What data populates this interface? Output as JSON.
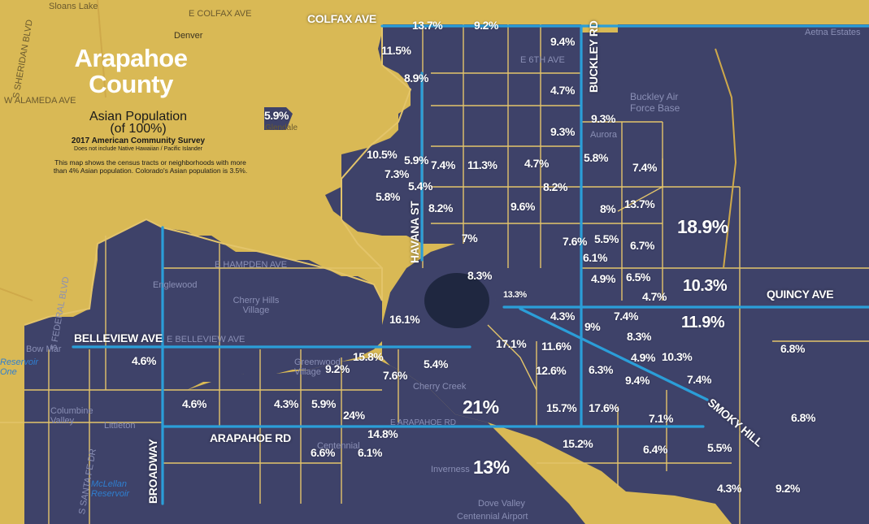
{
  "title_line1": "Arapahoe",
  "title_line2": "County",
  "subtitle_line1": "Asian Population",
  "subtitle_line2": "(of 100%)",
  "survey": "2017 American Community Survey",
  "exclusion_note": "Does not include Native Hawaiian / Pacific Islander",
  "description_line1": "This map shows the census tracts or neighborhoods with more",
  "description_line2": "than 4% Asian population. Colorado's Asian population is 3.5%.",
  "colors": {
    "background": "#d9b955",
    "tract_fill": "#3e4269",
    "boundary": "#e3c46a",
    "road": "#2b9ed8",
    "label": "#ffffff"
  },
  "roads": {
    "colfax": "COLFAX AVE",
    "buckley": "BUCKLEY RD",
    "havana": "HAVANA ST",
    "quincy": "QUINCY AVE",
    "belleview": "BELLEVIEW AVE",
    "arapahoe": "ARAPAHOE RD",
    "broadway": "BROADWAY",
    "smoky_hill": "SMOKY HILL"
  },
  "places": {
    "sloans_lake": "Sloans Lake",
    "denver": "Denver",
    "colfax_ave_map": "E COLFAX AVE",
    "e_6th_ave": "E 6TH AVE",
    "w_alameda": "W ALAMEDA AVE",
    "glendale": "Glendale",
    "englewood": "Englewood",
    "e_hampden": "E HAMPDEN AVE",
    "cherry_hills": "Cherry Hills Village",
    "e_belleview": "E BELLEVIEW AVE",
    "bow_mar": "Bow Mar",
    "reservoir": "Reservoir One",
    "greenwood": "Greenwood Village",
    "cherry_creek": "Cherry Creek",
    "columbine": "Columbine Valley",
    "littleton": "Littleton",
    "mcclellan": "McLellan Reservoir",
    "centennial": "Centennial",
    "inverness": "Inverness",
    "dove_valley": "Dove Valley",
    "aurora": "Aurora",
    "buckley_afb": "Buckley Air Force Base",
    "aetna": "Aetna Estates",
    "e_arapahoe": "E ARAPAHOE RD",
    "s_federal": "S FEDERAL BLVD",
    "s_sheridan": "S SHERIDAN BLVD",
    "s_santa_fe": "S SANTA FE DR",
    "airport": "Centennial Airport"
  },
  "tracts": [
    {
      "id": "t01",
      "value": "13.7%"
    },
    {
      "id": "t02",
      "value": "9.2%"
    },
    {
      "id": "t03",
      "value": "11.5%"
    },
    {
      "id": "t04",
      "value": "9.4%"
    },
    {
      "id": "t05",
      "value": "8.9%"
    },
    {
      "id": "t06",
      "value": "4.7%"
    },
    {
      "id": "t07",
      "value": "5.9%"
    },
    {
      "id": "t08",
      "value": "9.3%"
    },
    {
      "id": "t09",
      "value": "9.3%"
    },
    {
      "id": "t10",
      "value": "10.5%"
    },
    {
      "id": "t11",
      "value": "5.9%"
    },
    {
      "id": "t12",
      "value": "7.4%"
    },
    {
      "id": "t13",
      "value": "11.3%"
    },
    {
      "id": "t14",
      "value": "4.7%"
    },
    {
      "id": "t15",
      "value": "5.8%"
    },
    {
      "id": "t16",
      "value": "7.4%"
    },
    {
      "id": "t17",
      "value": "7.3%"
    },
    {
      "id": "t18",
      "value": "5.4%"
    },
    {
      "id": "t19",
      "value": "8.2%"
    },
    {
      "id": "t20",
      "value": "5.8%"
    },
    {
      "id": "t21",
      "value": "8.2%"
    },
    {
      "id": "t22",
      "value": "9.6%"
    },
    {
      "id": "t23",
      "value": "8%"
    },
    {
      "id": "t24",
      "value": "13.7%"
    },
    {
      "id": "t25",
      "value": "18.9%"
    },
    {
      "id": "t26",
      "value": "7%"
    },
    {
      "id": "t27",
      "value": "7.6%"
    },
    {
      "id": "t28",
      "value": "5.5%"
    },
    {
      "id": "t29",
      "value": "6.7%"
    },
    {
      "id": "t30",
      "value": "6.1%"
    },
    {
      "id": "t31",
      "value": "8.3%"
    },
    {
      "id": "t32",
      "value": "4.9%"
    },
    {
      "id": "t33",
      "value": "6.5%"
    },
    {
      "id": "t34",
      "value": "10.3%"
    },
    {
      "id": "t35",
      "value": "13.3%"
    },
    {
      "id": "t36",
      "value": "4.7%"
    },
    {
      "id": "t37",
      "value": "16.1%"
    },
    {
      "id": "t38",
      "value": "4.3%"
    },
    {
      "id": "t39",
      "value": "7.4%"
    },
    {
      "id": "t40",
      "value": "9%"
    },
    {
      "id": "t41",
      "value": "11.9%"
    },
    {
      "id": "t42",
      "value": "8.3%"
    },
    {
      "id": "t43",
      "value": "17.1%"
    },
    {
      "id": "t44",
      "value": "11.6%"
    },
    {
      "id": "t45",
      "value": "4.9%"
    },
    {
      "id": "t46",
      "value": "10.3%"
    },
    {
      "id": "t47",
      "value": "6.8%"
    },
    {
      "id": "t48",
      "value": "4.6%"
    },
    {
      "id": "t49",
      "value": "15.8%"
    },
    {
      "id": "t50",
      "value": "9.2%"
    },
    {
      "id": "t51",
      "value": "5.4%"
    },
    {
      "id": "t52",
      "value": "7.6%"
    },
    {
      "id": "t53",
      "value": "12.6%"
    },
    {
      "id": "t54",
      "value": "6.3%"
    },
    {
      "id": "t55",
      "value": "9.4%"
    },
    {
      "id": "t56",
      "value": "7.4%"
    },
    {
      "id": "t57",
      "value": "4.6%"
    },
    {
      "id": "t58",
      "value": "4.3%"
    },
    {
      "id": "t59",
      "value": "5.9%"
    },
    {
      "id": "t60",
      "value": "24%"
    },
    {
      "id": "t61",
      "value": "21%"
    },
    {
      "id": "t62",
      "value": "15.7%"
    },
    {
      "id": "t63",
      "value": "17.6%"
    },
    {
      "id": "t64",
      "value": "7.1%"
    },
    {
      "id": "t65",
      "value": "6.8%"
    },
    {
      "id": "t66",
      "value": "14.8%"
    },
    {
      "id": "t67",
      "value": "6.6%"
    },
    {
      "id": "t68",
      "value": "6.1%"
    },
    {
      "id": "t69",
      "value": "15.2%"
    },
    {
      "id": "t70",
      "value": "6.4%"
    },
    {
      "id": "t71",
      "value": "5.5%"
    },
    {
      "id": "t72",
      "value": "13%"
    },
    {
      "id": "t73",
      "value": "4.3%"
    },
    {
      "id": "t74",
      "value": "9.2%"
    }
  ]
}
